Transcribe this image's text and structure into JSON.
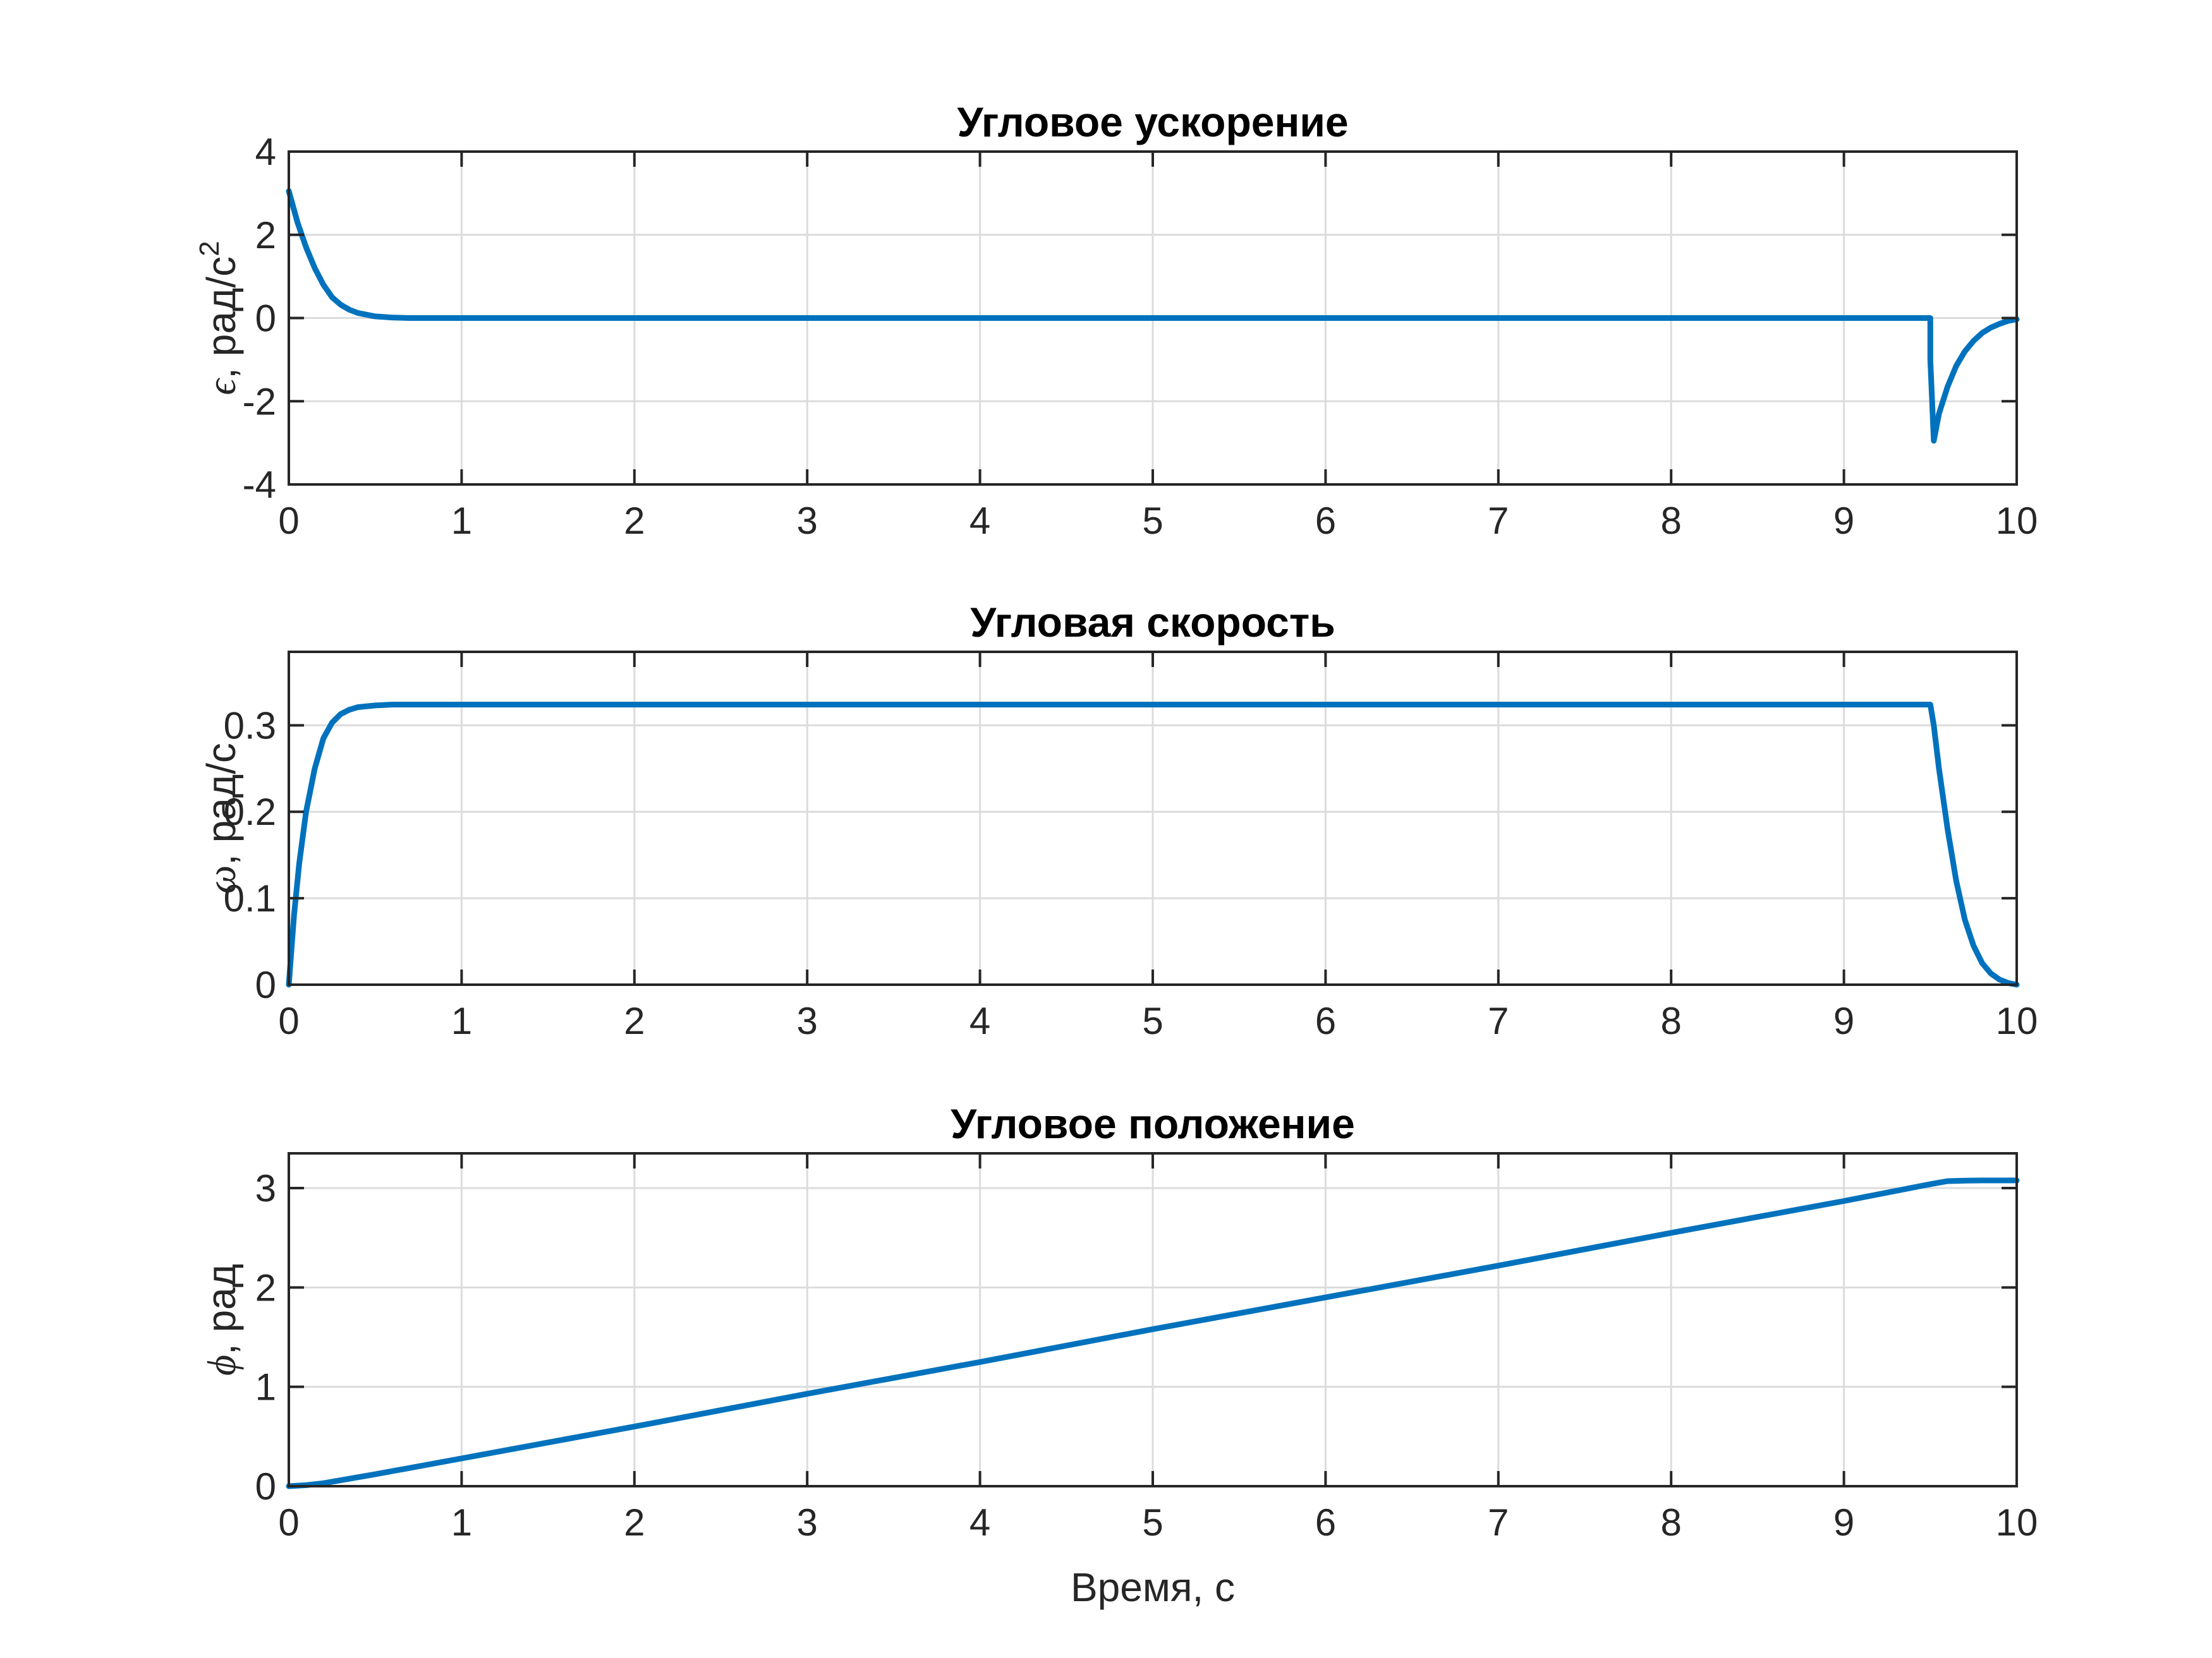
{
  "colors": {
    "series": "#0072bd",
    "axes": "#262626",
    "grid": "#dcdcdc"
  },
  "chart_data": [
    {
      "type": "line",
      "title": "Угловое ускорение",
      "ylabel_symbol": "ϵ",
      "ylabel_text": ", рад/с",
      "ylabel_sup": "2",
      "xlabel": "",
      "xlim": [
        0,
        10
      ],
      "ylim": [
        -4,
        4
      ],
      "xticks": [
        0,
        1,
        2,
        3,
        4,
        5,
        6,
        7,
        8,
        9,
        10
      ],
      "yticks": [
        -4,
        -2,
        0,
        2,
        4
      ],
      "ytick_labels": [
        "-4",
        "-2",
        "0",
        "2",
        "4"
      ],
      "grid": true,
      "series": [
        {
          "x": [
            0,
            0.05,
            0.1,
            0.15,
            0.2,
            0.25,
            0.3,
            0.35,
            0.4,
            0.5,
            0.6,
            0.7,
            1,
            2,
            3,
            4,
            5,
            6,
            7,
            8,
            9,
            9.5,
            9.5,
            9.52,
            9.55,
            9.6,
            9.65,
            9.7,
            9.75,
            9.8,
            9.85,
            9.9,
            9.95,
            10
          ],
          "y": [
            3.05,
            2.3,
            1.7,
            1.2,
            0.8,
            0.5,
            0.32,
            0.2,
            0.12,
            0.04,
            0.01,
            0,
            0,
            0,
            0,
            0,
            0,
            0,
            0,
            0,
            0,
            0,
            -1.0,
            -2.95,
            -2.3,
            -1.65,
            -1.15,
            -0.8,
            -0.55,
            -0.36,
            -0.23,
            -0.14,
            -0.07,
            -0.03
          ]
        }
      ]
    },
    {
      "type": "line",
      "title": "Угловая скорость",
      "ylabel_symbol": "ω",
      "ylabel_text": ", рад/с",
      "ylabel_sup": "",
      "xlabel": "",
      "xlim": [
        0,
        10
      ],
      "ylim": [
        0,
        0.385
      ],
      "xticks": [
        0,
        1,
        2,
        3,
        4,
        5,
        6,
        7,
        8,
        9,
        10
      ],
      "yticks": [
        0,
        0.1,
        0.2,
        0.3
      ],
      "ytick_labels": [
        "0",
        "0.1",
        "0.2",
        "0.3"
      ],
      "grid": true,
      "series": [
        {
          "x": [
            0,
            0.03,
            0.06,
            0.1,
            0.15,
            0.2,
            0.25,
            0.3,
            0.35,
            0.4,
            0.5,
            0.6,
            1,
            2,
            3,
            4,
            5,
            6,
            7,
            8,
            9,
            9.5,
            9.52,
            9.55,
            9.6,
            9.65,
            9.7,
            9.75,
            9.8,
            9.85,
            9.9,
            9.95,
            10
          ],
          "y": [
            0,
            0.08,
            0.14,
            0.2,
            0.25,
            0.285,
            0.303,
            0.313,
            0.318,
            0.321,
            0.323,
            0.324,
            0.324,
            0.324,
            0.324,
            0.324,
            0.324,
            0.324,
            0.324,
            0.324,
            0.324,
            0.324,
            0.3,
            0.25,
            0.18,
            0.12,
            0.075,
            0.045,
            0.025,
            0.013,
            0.006,
            0.002,
            0
          ]
        }
      ]
    },
    {
      "type": "line",
      "title": "Угловое положение",
      "ylabel_symbol": "ϕ",
      "ylabel_text": ", рад",
      "ylabel_sup": "",
      "xlabel": "Время, с",
      "xlim": [
        0,
        10
      ],
      "ylim": [
        0,
        3.35
      ],
      "xticks": [
        0,
        1,
        2,
        3,
        4,
        5,
        6,
        7,
        8,
        9,
        10
      ],
      "yticks": [
        0,
        1,
        2,
        3
      ],
      "ytick_labels": [
        "0",
        "1",
        "2",
        "3"
      ],
      "grid": true,
      "series": [
        {
          "x": [
            0,
            0.1,
            0.2,
            0.3,
            0.5,
            1,
            2,
            3,
            4,
            5,
            6,
            7,
            8,
            9,
            9.5,
            9.6,
            9.7,
            9.8,
            10
          ],
          "y": [
            0,
            0.01,
            0.03,
            0.06,
            0.12,
            0.28,
            0.6,
            0.93,
            1.25,
            1.58,
            1.9,
            2.22,
            2.55,
            2.87,
            3.04,
            3.07,
            3.075,
            3.077,
            3.077
          ]
        }
      ]
    }
  ]
}
